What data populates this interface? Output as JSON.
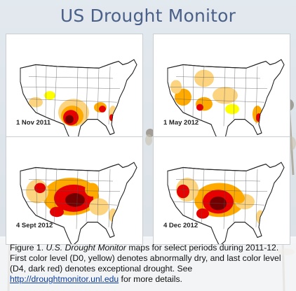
{
  "title": "US Drought Monitor",
  "maps": [
    {
      "date": "1 Nov 2011"
    },
    {
      "date": "1 May 2012"
    },
    {
      "date": "4 Sept 2012"
    },
    {
      "date": "4 Dec 2012"
    }
  ],
  "caption": {
    "lead": "Figure 1. ",
    "italic": "U.S. Drought Monitor",
    "body": " maps for select periods during 2011-12. First color level (D0, yellow) denotes abnormally dry, and last color level (D4, dark red) denotes exceptional drought. See ",
    "link": "http://droughtmonitor.unl.edu",
    "tail": " for more details."
  },
  "colors": {
    "title": "#4a6088",
    "D0": "#ffff00",
    "D1": "#fcd37f",
    "D2": "#ffaa00",
    "D3": "#e60000",
    "D4": "#730000"
  }
}
